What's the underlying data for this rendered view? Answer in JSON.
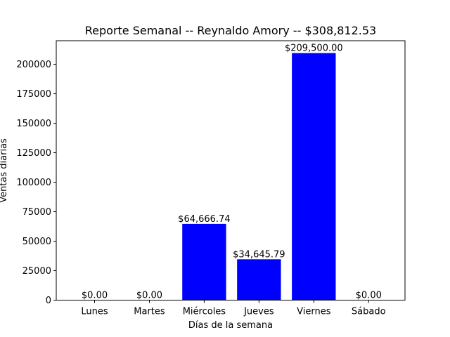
{
  "chart_data": {
    "type": "bar",
    "title": "Reporte Semanal -- Reynaldo Amory -- $308,812.53",
    "xlabel": "Días de la semana",
    "ylabel": "Ventas diarias",
    "categories": [
      "Lunes",
      "Martes",
      "Miércoles",
      "Jueves",
      "Viernes",
      "Sábado"
    ],
    "values": [
      0,
      0,
      64666.74,
      34645.79,
      209500.0,
      0
    ],
    "data_labels": [
      "$0.00",
      "$0.00",
      "$64,666.74",
      "$34,645.79",
      "$209,500.00",
      "$0.00"
    ],
    "yticks": [
      0,
      25000,
      50000,
      75000,
      100000,
      125000,
      150000,
      175000,
      200000
    ],
    "ylim": [
      0,
      219975
    ],
    "grid": false,
    "bar_color": "#0000ff"
  }
}
